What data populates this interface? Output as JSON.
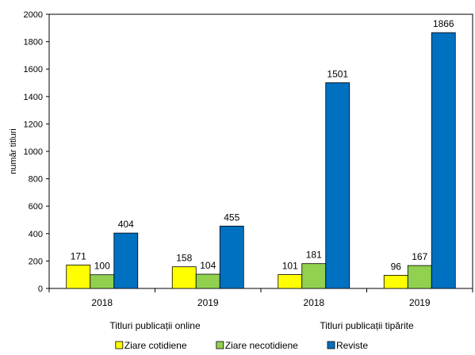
{
  "chart_data": {
    "type": "bar",
    "ylabel": "număr titluri",
    "ylim": [
      0,
      2000
    ],
    "yticks": [
      0,
      200,
      400,
      600,
      800,
      1000,
      1200,
      1400,
      1600,
      1800,
      2000
    ],
    "categories": [
      "2018",
      "2019",
      "2018",
      "2019"
    ],
    "groups": [
      {
        "label": "Titluri publicații online",
        "categories": [
          0,
          1
        ]
      },
      {
        "label": "Titluri publicații tipărite",
        "categories": [
          2,
          3
        ]
      }
    ],
    "series": [
      {
        "name": "Ziare cotidiene",
        "color": "#FFFF00",
        "values": [
          171,
          158,
          101,
          96
        ]
      },
      {
        "name": "Ziare necotidiene",
        "color": "#92D050",
        "values": [
          100,
          104,
          181,
          167
        ]
      },
      {
        "name": "Reviste",
        "color": "#0070C0",
        "values": [
          404,
          455,
          1501,
          1866
        ]
      }
    ],
    "legend_position": "bottom",
    "grid": false
  }
}
